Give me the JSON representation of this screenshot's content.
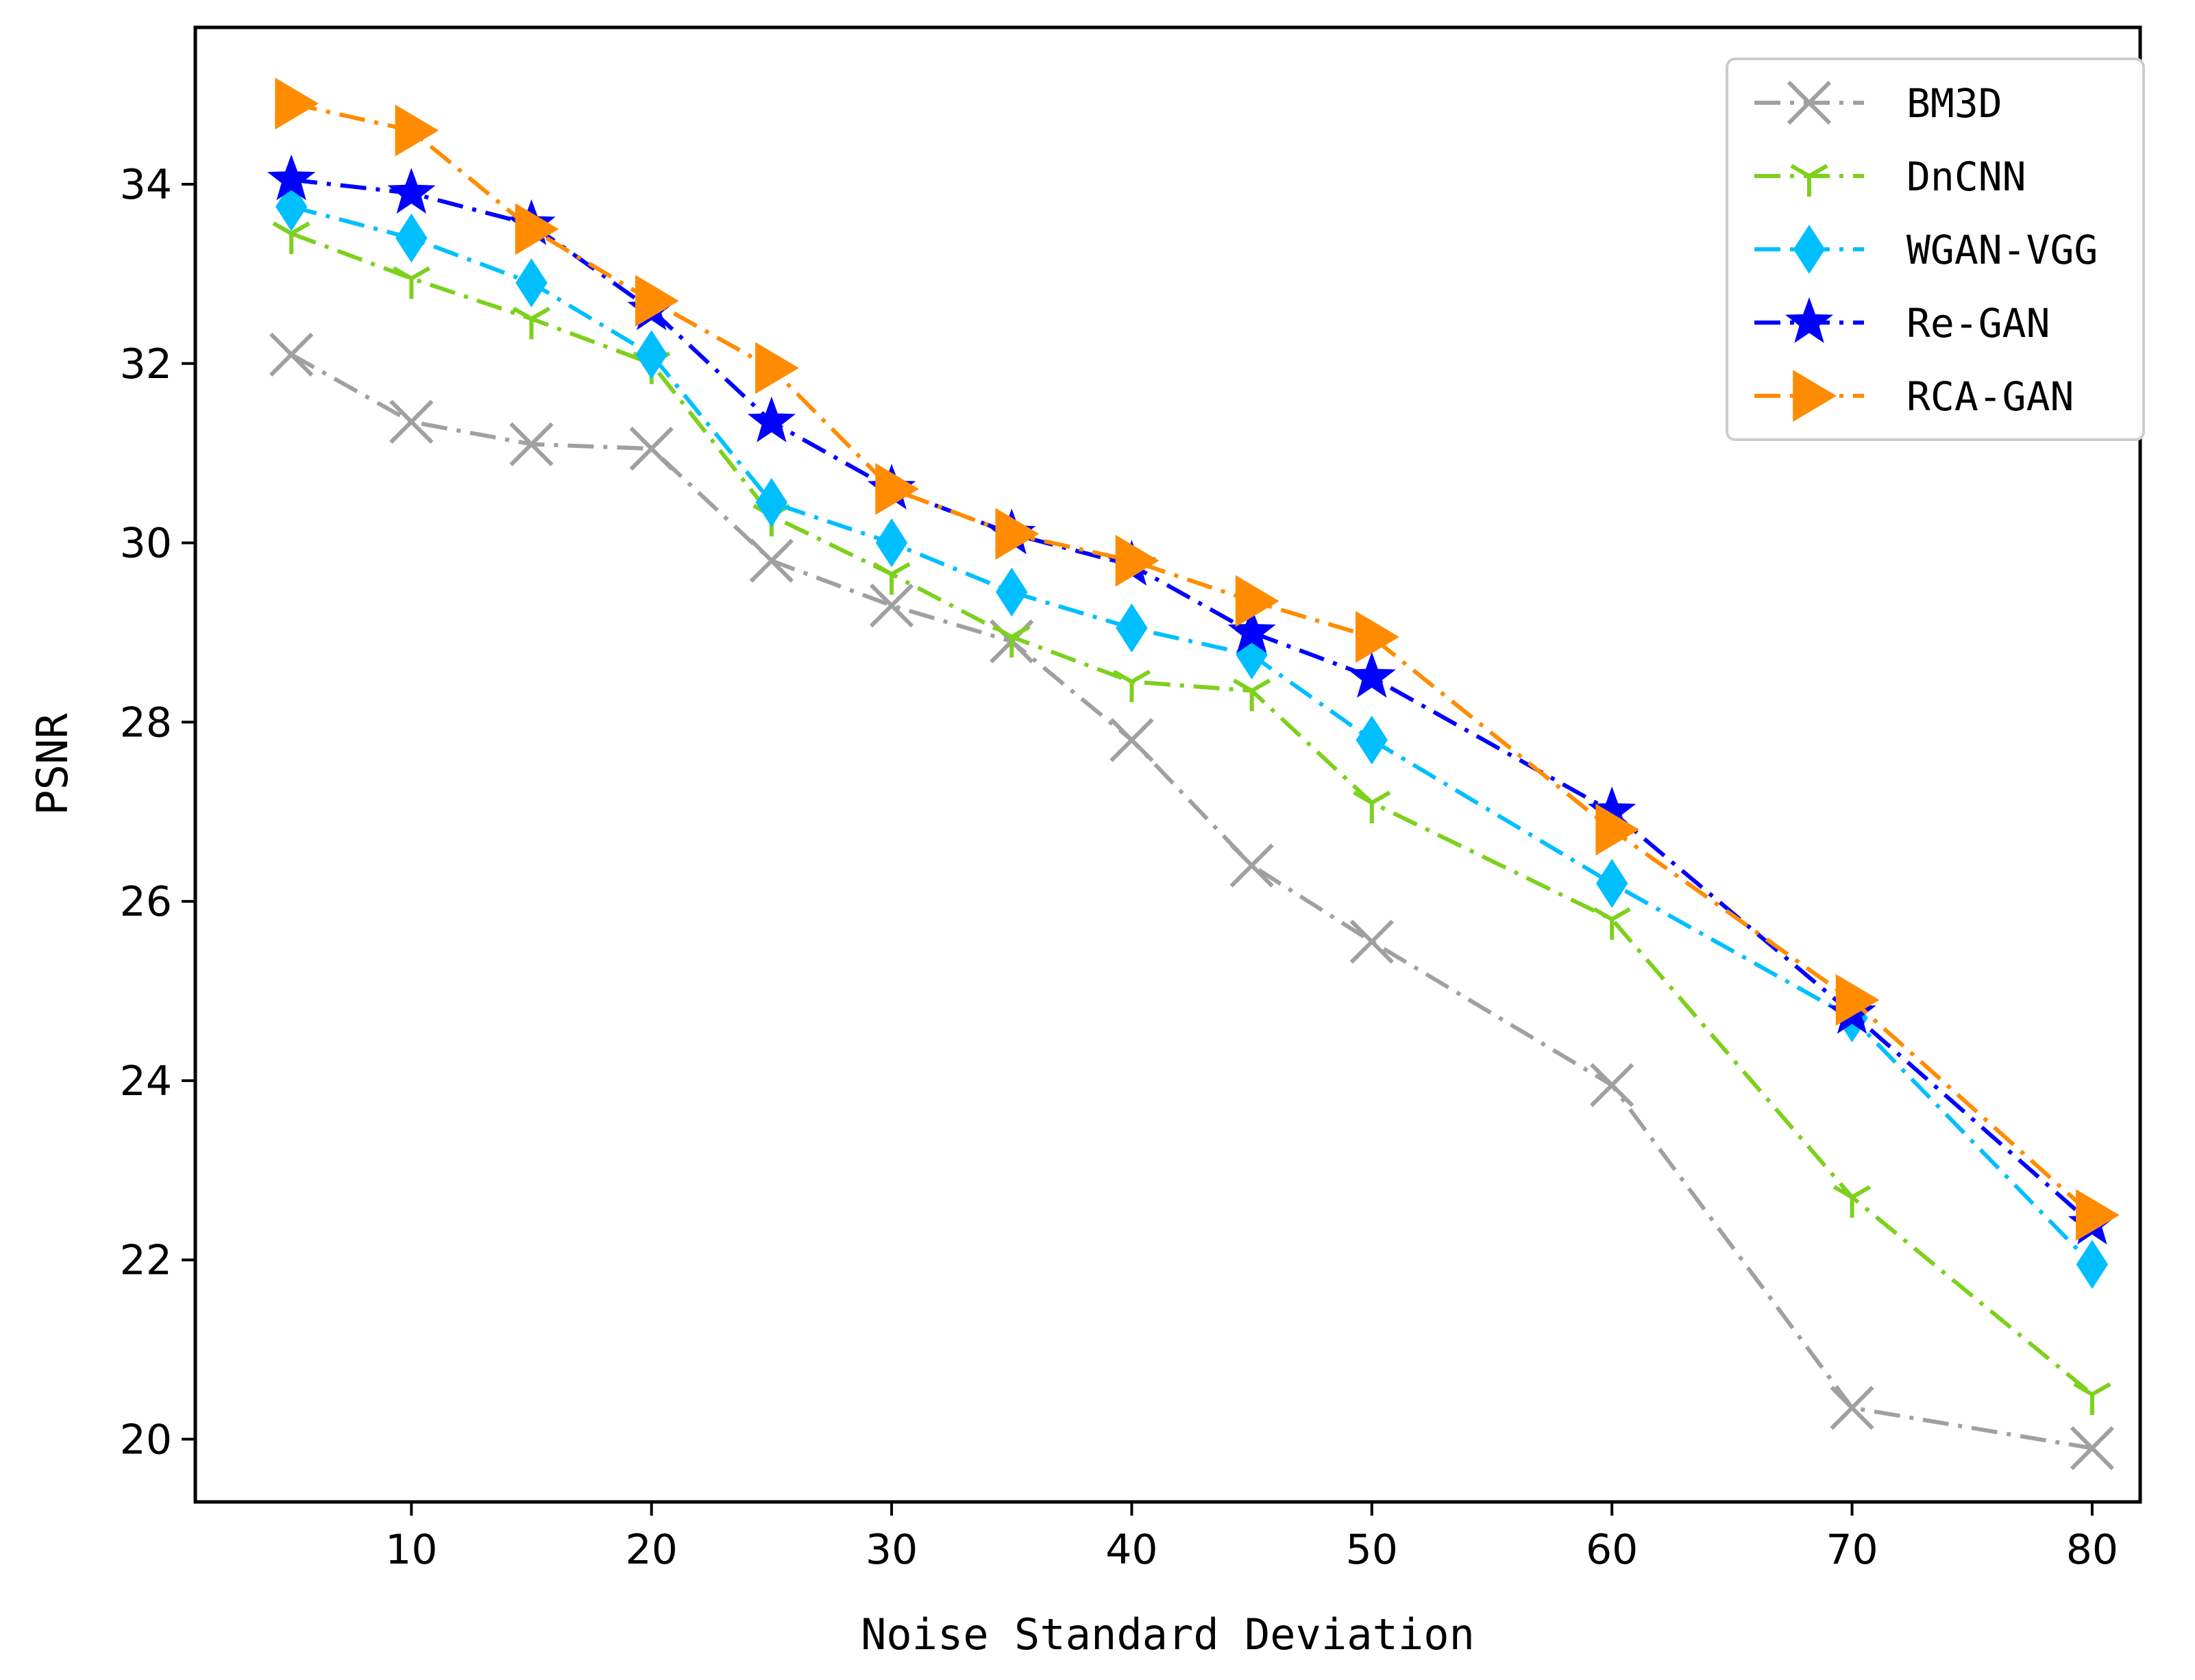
{
  "chart_data": {
    "type": "line",
    "title": "",
    "xlabel": "Noise Standard Deviation",
    "ylabel": "PSNR",
    "xlim": [
      1,
      82
    ],
    "ylim": [
      19.3,
      35.75
    ],
    "x_ticks": [
      10,
      20,
      30,
      40,
      50,
      60,
      70,
      80
    ],
    "y_ticks": [
      20,
      22,
      24,
      26,
      28,
      30,
      32,
      34
    ],
    "grid": false,
    "legend_position": "top-right",
    "x": [
      5,
      10,
      15,
      20,
      25,
      30,
      35,
      40,
      45,
      50,
      60,
      70,
      80
    ],
    "series": [
      {
        "name": "BM3D",
        "color": "#a0a0a0",
        "marker": "x",
        "values": [
          32.1,
          31.35,
          31.1,
          31.05,
          29.8,
          29.3,
          28.9,
          27.8,
          26.4,
          25.55,
          23.95,
          20.35,
          19.9
        ]
      },
      {
        "name": "DnCNN",
        "color": "#7cd11c",
        "marker": "tri-down",
        "values": [
          33.45,
          32.95,
          32.5,
          32.0,
          30.3,
          29.65,
          28.95,
          28.45,
          28.35,
          27.1,
          25.8,
          22.7,
          20.5
        ]
      },
      {
        "name": "WGAN-VGG",
        "color": "#00bfff",
        "marker": "diamond",
        "values": [
          33.75,
          33.4,
          32.9,
          32.1,
          30.45,
          30.0,
          29.45,
          29.05,
          28.75,
          27.8,
          26.2,
          24.7,
          21.95
        ]
      },
      {
        "name": "Re-GAN",
        "color": "#0000ff",
        "marker": "star",
        "values": [
          34.05,
          33.9,
          33.55,
          32.6,
          31.35,
          30.6,
          30.1,
          29.75,
          29.0,
          28.5,
          27.0,
          24.75,
          22.4
        ]
      },
      {
        "name": "RCA-GAN",
        "color": "#ff8c00",
        "marker": "triangle-right",
        "values": [
          34.9,
          34.6,
          33.5,
          32.7,
          31.95,
          30.6,
          30.1,
          29.8,
          29.35,
          28.95,
          26.8,
          24.9,
          22.5
        ]
      }
    ]
  }
}
